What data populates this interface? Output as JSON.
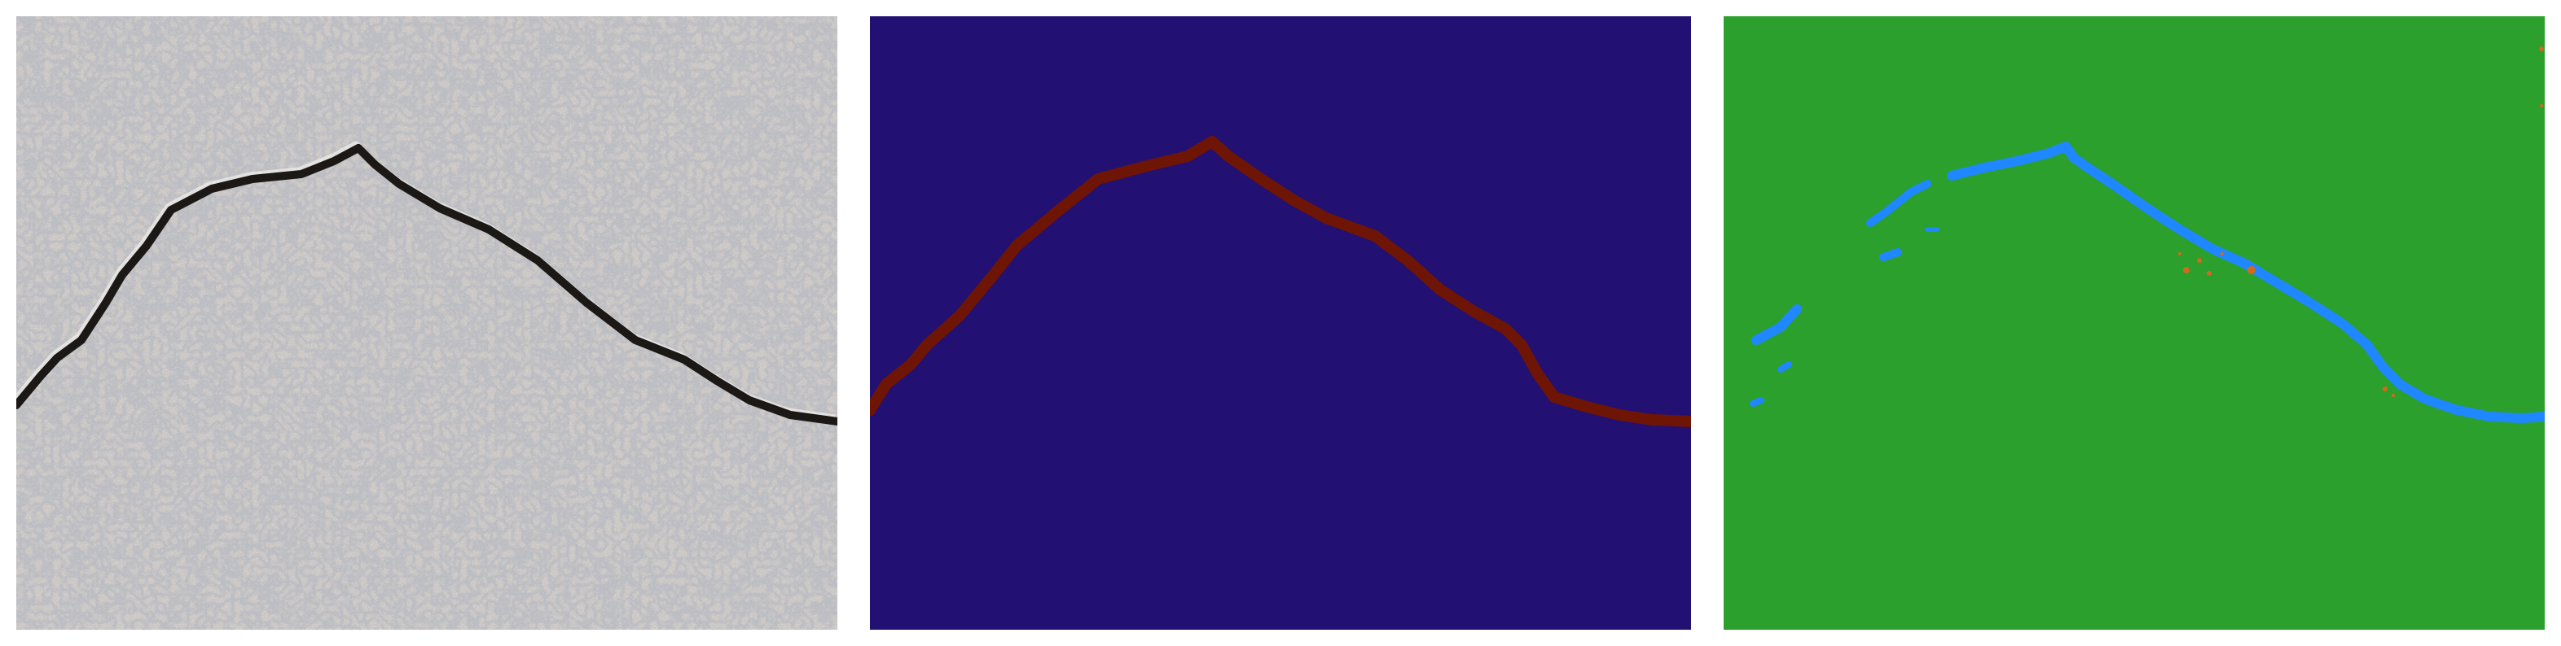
{
  "figure": {
    "panels": [
      {
        "id": "photo",
        "kind": "input-photograph",
        "subject": "concrete-surface-crack"
      },
      {
        "id": "ground-truth",
        "kind": "segmentation-mask"
      },
      {
        "id": "prediction",
        "kind": "segmentation-prediction"
      }
    ]
  },
  "colors": {
    "background": "#ffffff",
    "concrete": "#c7c3c0",
    "crack_dark": "#1b1816",
    "gt_background": "#221072",
    "gt_crack": "#6e1505",
    "pred_background": "#2ca02c",
    "pred_crack": "#1f87ff",
    "pred_noise": "#d2691e"
  }
}
